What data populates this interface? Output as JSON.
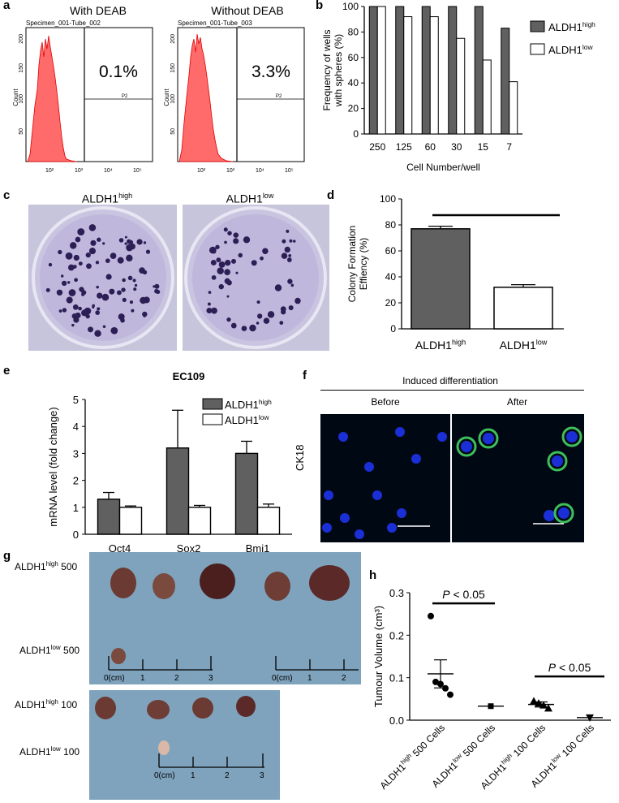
{
  "panel_labels": [
    "a",
    "b",
    "c",
    "d",
    "e",
    "f",
    "g",
    "h"
  ],
  "panel_a": {
    "left": {
      "title": "With DEAB",
      "specimen": "Specimen_001-Tube_002",
      "percent": "0.1%",
      "gate": "P2",
      "ylabel": "Count",
      "yticks": [
        "50",
        "100",
        "150",
        "200"
      ],
      "xticks": [
        "10²",
        "10³",
        "10⁴",
        "10⁵"
      ]
    },
    "right": {
      "title": "Without DEAB",
      "specimen": "Specimen_001-Tube_003",
      "percent": "3.3%",
      "gate": "P2",
      "ylabel": "Count",
      "yticks": [
        "50",
        "100",
        "150",
        "200"
      ],
      "xticks": [
        "10²",
        "10³",
        "10⁴",
        "10⁵"
      ]
    }
  },
  "panel_c": {
    "label_high": "ALDH1",
    "sup_high": "high",
    "label_low": "ALDH1",
    "sup_low": "low"
  },
  "panel_f": {
    "header": "Induced differentiation",
    "before": "Before",
    "after": "After",
    "ylabel": "CK18"
  },
  "panel_g": {
    "rows": [
      {
        "label": "ALDH1",
        "sup": "high",
        "count": "500"
      },
      {
        "label": "ALDH1",
        "sup": "low",
        "count": "500"
      },
      {
        "label": "ALDH1",
        "sup": "high",
        "count": "100"
      },
      {
        "label": "ALDH1",
        "sup": "low",
        "count": "100"
      }
    ],
    "ruler_unit": "0(cm)",
    "ruler_ticks": [
      "1",
      "2",
      "3"
    ]
  },
  "chart_data": [
    {
      "id": "b",
      "type": "bar",
      "categories": [
        "250",
        "125",
        "60",
        "30",
        "15",
        "7"
      ],
      "series": [
        {
          "name": "ALDH1high",
          "display": "ALDH1",
          "sup": "high",
          "values": [
            100,
            100,
            100,
            100,
            100,
            83
          ],
          "color": "#606060"
        },
        {
          "name": "ALDH1low",
          "display": "ALDH1",
          "sup": "low",
          "values": [
            100,
            92,
            92,
            75,
            58,
            41
          ],
          "color": "#ffffff"
        }
      ],
      "xlabel": "Cell Number/well",
      "ylabel": [
        "Frequency of wells",
        "with spheres (%)"
      ],
      "ylim": [
        0,
        100
      ],
      "yticks": [
        0,
        20,
        40,
        60,
        80,
        100
      ],
      "legend": "right"
    },
    {
      "id": "d",
      "type": "bar",
      "categories": [
        {
          "label": "ALDH1",
          "sup": "high"
        },
        {
          "label": "ALDH1",
          "sup": "low"
        }
      ],
      "values": [
        77,
        32
      ],
      "errors": [
        2,
        2
      ],
      "colors": [
        "#606060",
        "#ffffff"
      ],
      "ylabel": [
        "Colony Formation",
        "Effiency (%)"
      ],
      "ylim": [
        0,
        100
      ],
      "yticks": [
        0,
        20,
        40,
        60,
        80,
        100
      ]
    },
    {
      "id": "e",
      "type": "bar",
      "title": "EC109",
      "categories": [
        "Oct4",
        "Sox2",
        "Bmi1"
      ],
      "series": [
        {
          "name": "ALDH1high",
          "display": "ALDH1",
          "sup": "high",
          "values": [
            1.3,
            3.2,
            3.0
          ],
          "errors": [
            0.25,
            1.4,
            0.45
          ],
          "color": "#606060"
        },
        {
          "name": "ALDH1low",
          "display": "ALDH1",
          "sup": "low",
          "values": [
            1.0,
            1.0,
            1.0
          ],
          "errors": [
            0.05,
            0.07,
            0.12
          ],
          "color": "#ffffff"
        }
      ],
      "ylabel": "mRNA level (fold change)",
      "ylim": [
        0,
        5
      ],
      "yticks": [
        0,
        1,
        2,
        3,
        4,
        5
      ],
      "legend": "top-right"
    },
    {
      "id": "h",
      "type": "scatter",
      "ylabel": "Tumour Volume (cm³)",
      "ylim": [
        0,
        0.3
      ],
      "yticks": [
        "0.0",
        "0.1",
        "0.2",
        "0.3"
      ],
      "groups": [
        {
          "label": "ALDH1",
          "sup": "high",
          "tail": " 500 Cells",
          "marker": "circle",
          "points": [
            0.245,
            0.09,
            0.085,
            0.075,
            0.06
          ],
          "mean": 0.109,
          "sem": 0.033
        },
        {
          "label": "ALDH1",
          "sup": "low",
          "tail": " 500 Cells",
          "marker": "square",
          "points": [
            0.033
          ],
          "mean": 0.033,
          "sem": 0
        },
        {
          "label": "ALDH1",
          "sup": "high",
          "tail": " 100 Cells",
          "marker": "triangle",
          "points": [
            0.045,
            0.04,
            0.035,
            0.028
          ],
          "mean": 0.037,
          "sem": 0.006
        },
        {
          "label": "ALDH1",
          "sup": "low",
          "tail": " 100 Cells",
          "marker": "triangle-down",
          "points": [
            0.006
          ],
          "mean": 0.006,
          "sem": 0
        }
      ],
      "annotations": [
        {
          "text": "< 0.05",
          "italic": "P",
          "groups": [
            0,
            1
          ]
        },
        {
          "text": "< 0.05",
          "italic": "P",
          "groups": [
            2,
            3
          ]
        }
      ]
    }
  ]
}
